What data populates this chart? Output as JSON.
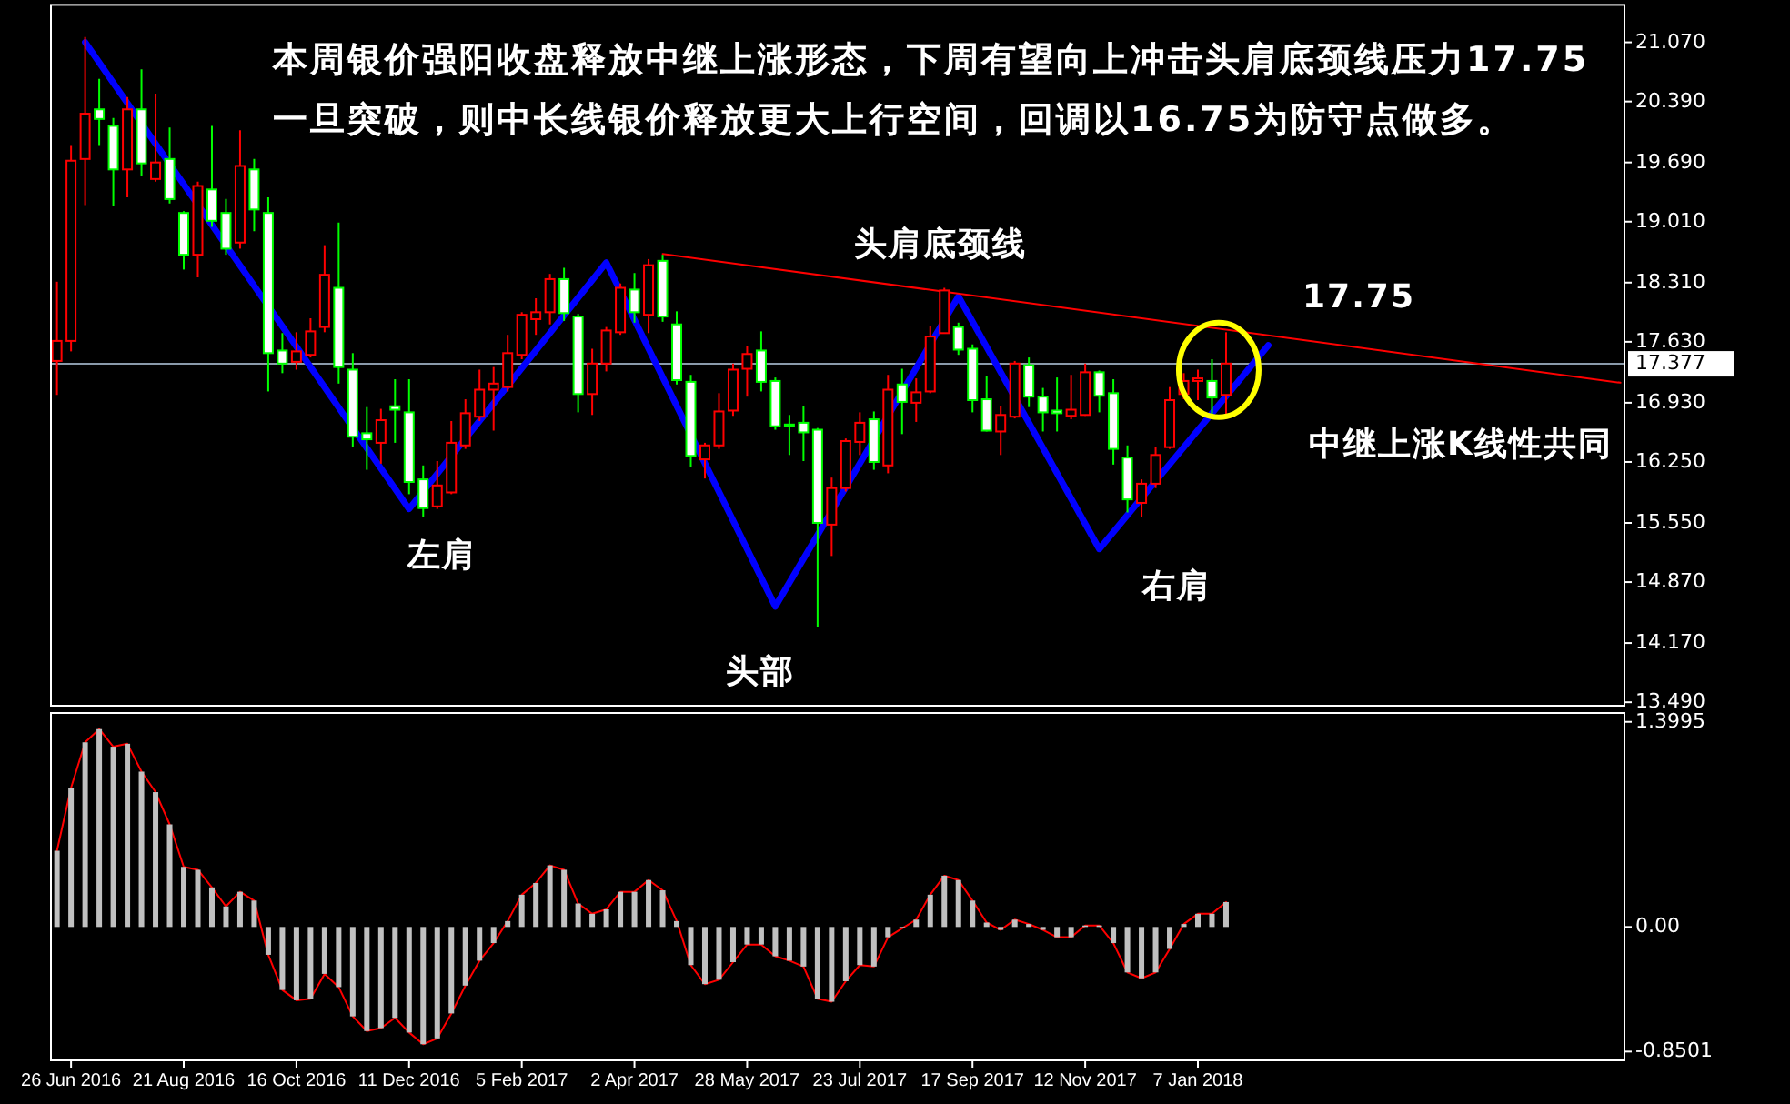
{
  "chart_data": [
    {
      "type": "candlestick",
      "title": "本周银价强阳收盘释放中继上涨形态，下周有望向上冲击头肩底颈线压力17.75",
      "subtitle": "一旦突破，则中长线银价释放更大上行空间，回调以16.75为防守点做多。",
      "x": [
        "2016-06-19",
        "2016-06-26",
        "2016-07-03",
        "2016-07-10",
        "2016-07-17",
        "2016-07-24",
        "2016-07-31",
        "2016-08-07",
        "2016-08-14",
        "2016-08-21",
        "2016-08-28",
        "2016-09-04",
        "2016-09-11",
        "2016-09-18",
        "2016-09-25",
        "2016-10-02",
        "2016-10-09",
        "2016-10-16",
        "2016-10-23",
        "2016-10-30",
        "2016-11-06",
        "2016-11-13",
        "2016-11-20",
        "2016-11-27",
        "2016-12-04",
        "2016-12-11",
        "2016-12-18",
        "2016-12-25",
        "2017-01-01",
        "2017-01-08",
        "2017-01-15",
        "2017-01-22",
        "2017-01-29",
        "2017-02-05",
        "2017-02-12",
        "2017-02-19",
        "2017-02-26",
        "2017-03-05",
        "2017-03-12",
        "2017-03-19",
        "2017-03-26",
        "2017-04-02",
        "2017-04-09",
        "2017-04-16",
        "2017-04-23",
        "2017-04-30",
        "2017-05-07",
        "2017-05-14",
        "2017-05-21",
        "2017-05-28",
        "2017-06-04",
        "2017-06-11",
        "2017-06-18",
        "2017-06-25",
        "2017-07-02",
        "2017-07-09",
        "2017-07-16",
        "2017-07-23",
        "2017-07-30",
        "2017-08-06",
        "2017-08-13",
        "2017-08-20",
        "2017-08-27",
        "2017-09-03",
        "2017-09-10",
        "2017-09-17",
        "2017-09-24",
        "2017-10-01",
        "2017-10-08",
        "2017-10-15",
        "2017-10-22",
        "2017-10-29",
        "2017-11-05",
        "2017-11-12",
        "2017-11-19",
        "2017-11-26",
        "2017-12-03",
        "2017-12-10",
        "2017-12-17",
        "2017-12-24",
        "2017-12-31",
        "2018-01-07",
        "2018-01-14",
        "2018-01-21"
      ],
      "ohlc": [
        [
          17.41,
          18.32,
          17.02,
          17.64
        ],
        [
          17.64,
          19.89,
          17.52,
          19.71
        ],
        [
          19.73,
          21.13,
          19.2,
          20.25
        ],
        [
          20.3,
          20.65,
          19.89,
          20.19
        ],
        [
          20.11,
          20.2,
          19.19,
          19.61
        ],
        [
          19.61,
          20.44,
          19.29,
          20.3
        ],
        [
          20.3,
          20.76,
          19.54,
          19.68
        ],
        [
          19.5,
          20.48,
          19.47,
          19.69
        ],
        [
          19.73,
          20.09,
          19.22,
          19.27
        ],
        [
          19.11,
          19.13,
          18.46,
          18.63
        ],
        [
          18.63,
          19.47,
          18.37,
          19.42
        ],
        [
          19.38,
          20.11,
          18.95,
          19.02
        ],
        [
          19.11,
          19.27,
          18.63,
          18.7
        ],
        [
          18.77,
          20.06,
          18.7,
          19.65
        ],
        [
          19.61,
          19.73,
          18.9,
          19.15
        ],
        [
          19.11,
          19.29,
          17.06,
          17.5
        ],
        [
          17.53,
          17.73,
          17.27,
          17.38
        ],
        [
          17.4,
          17.74,
          17.31,
          17.52
        ],
        [
          17.48,
          17.9,
          17.45,
          17.75
        ],
        [
          17.8,
          18.74,
          17.74,
          18.4
        ],
        [
          18.25,
          19.0,
          17.15,
          17.34
        ],
        [
          17.31,
          17.5,
          16.42,
          16.54
        ],
        [
          16.58,
          16.88,
          16.16,
          16.51
        ],
        [
          16.47,
          16.86,
          16.23,
          16.73
        ],
        [
          16.89,
          17.2,
          16.47,
          16.85
        ],
        [
          16.82,
          17.2,
          15.88,
          16.02
        ],
        [
          16.05,
          16.21,
          15.62,
          15.72
        ],
        [
          15.74,
          16.26,
          15.71,
          15.98
        ],
        [
          15.9,
          16.72,
          15.88,
          16.47
        ],
        [
          16.44,
          16.97,
          16.4,
          16.81
        ],
        [
          16.77,
          17.31,
          16.72,
          17.08
        ],
        [
          17.08,
          17.34,
          16.61,
          17.15
        ],
        [
          17.11,
          17.71,
          17.06,
          17.5
        ],
        [
          17.48,
          17.97,
          17.43,
          17.94
        ],
        [
          17.89,
          18.13,
          17.71,
          17.97
        ],
        [
          17.97,
          18.41,
          17.83,
          18.35
        ],
        [
          18.35,
          18.48,
          17.87,
          17.96
        ],
        [
          17.92,
          17.95,
          16.82,
          17.03
        ],
        [
          17.03,
          17.55,
          16.79,
          17.38
        ],
        [
          17.38,
          17.8,
          17.29,
          17.76
        ],
        [
          17.74,
          18.3,
          17.71,
          18.25
        ],
        [
          18.23,
          18.42,
          17.85,
          17.97
        ],
        [
          17.94,
          18.58,
          17.73,
          18.51
        ],
        [
          18.56,
          18.63,
          17.86,
          17.92
        ],
        [
          17.83,
          17.98,
          17.14,
          17.19
        ],
        [
          17.17,
          17.25,
          16.19,
          16.32
        ],
        [
          16.28,
          16.47,
          16.06,
          16.44
        ],
        [
          16.44,
          17.04,
          16.4,
          16.83
        ],
        [
          16.84,
          17.38,
          16.78,
          17.31
        ],
        [
          17.32,
          17.58,
          17.0,
          17.49
        ],
        [
          17.53,
          17.75,
          17.06,
          17.17
        ],
        [
          17.18,
          17.22,
          16.62,
          16.66
        ],
        [
          16.68,
          16.79,
          16.33,
          16.66
        ],
        [
          16.7,
          16.89,
          16.26,
          16.59
        ],
        [
          16.62,
          16.64,
          14.35,
          15.55
        ],
        [
          15.53,
          16.07,
          15.17,
          15.95
        ],
        [
          15.95,
          16.52,
          15.91,
          16.49
        ],
        [
          16.48,
          16.82,
          16.33,
          16.7
        ],
        [
          16.74,
          16.83,
          16.16,
          16.25
        ],
        [
          16.21,
          17.25,
          16.12,
          17.08
        ],
        [
          17.14,
          17.32,
          16.57,
          16.94
        ],
        [
          16.93,
          17.21,
          16.71,
          17.05
        ],
        [
          17.06,
          17.81,
          17.04,
          17.69
        ],
        [
          17.73,
          18.25,
          17.73,
          18.22
        ],
        [
          17.8,
          17.85,
          17.48,
          17.54
        ],
        [
          17.55,
          17.6,
          16.82,
          16.96
        ],
        [
          16.97,
          17.24,
          16.6,
          16.61
        ],
        [
          16.6,
          16.89,
          16.33,
          16.79
        ],
        [
          16.77,
          17.41,
          16.75,
          17.38
        ],
        [
          17.36,
          17.45,
          16.88,
          17.0
        ],
        [
          17.0,
          17.1,
          16.6,
          16.82
        ],
        [
          16.84,
          17.22,
          16.6,
          16.81
        ],
        [
          16.78,
          17.25,
          16.74,
          16.85
        ],
        [
          16.79,
          17.38,
          16.78,
          17.28
        ],
        [
          17.28,
          17.3,
          16.82,
          17.01
        ],
        [
          17.04,
          17.2,
          16.22,
          16.4
        ],
        [
          16.3,
          16.44,
          15.67,
          15.82
        ],
        [
          15.78,
          16.05,
          15.62,
          16.0
        ],
        [
          16.0,
          16.42,
          15.95,
          16.33
        ],
        [
          16.42,
          17.11,
          16.4,
          16.96
        ],
        [
          17.03,
          17.27,
          16.97,
          17.18
        ],
        [
          17.18,
          17.31,
          16.96,
          17.21
        ],
        [
          17.18,
          17.43,
          16.79,
          16.99
        ],
        [
          17.02,
          17.74,
          16.75,
          17.38
        ]
      ],
      "series": [
        {
          "type": "line",
          "color": "#0000ff",
          "x": [
            "2016-07-03",
            "2016-12-11",
            "2017-03-19",
            "2017-06-11",
            "2017-09-10",
            "2017-11-19",
            "2018-02-11"
          ],
          "values": [
            21.07,
            15.71,
            18.54,
            14.59,
            18.15,
            15.25,
            17.59
          ]
        },
        {
          "type": "line",
          "color": "#ff0000",
          "x": [
            "2017-04-16",
            "2018-08-05"
          ],
          "values": [
            18.64,
            17.16
          ]
        }
      ],
      "ref_lines": [
        {
          "axis": "y",
          "value": 17.377,
          "label": "17.377",
          "color": "#8a9aaa"
        }
      ],
      "annotations": [
        "头肩底颈线",
        "17.75",
        "中继上涨K线性共同",
        "左肩",
        "头部",
        "右肩"
      ],
      "xlim": [
        "2016-06-16",
        "2018-08-07"
      ],
      "ylim": [
        13.45,
        21.5
      ],
      "yticks": [
        {
          "value": 21.07,
          "label": "21.070"
        },
        {
          "value": 20.39,
          "label": "20.390"
        },
        {
          "value": 19.69,
          "label": "19.690"
        },
        {
          "value": 19.01,
          "label": "19.010"
        },
        {
          "value": 18.31,
          "label": "18.310"
        },
        {
          "value": 17.63,
          "label": "17.630"
        },
        {
          "value": 16.93,
          "label": "16.930"
        },
        {
          "value": 16.25,
          "label": "16.250"
        },
        {
          "value": 15.55,
          "label": "15.550"
        },
        {
          "value": 14.87,
          "label": "14.870"
        },
        {
          "value": 14.17,
          "label": "14.170"
        },
        {
          "value": 13.49,
          "label": "13.490"
        }
      ],
      "tick_labels": "y"
    },
    {
      "type": "bar",
      "x": [
        "2016-06-19",
        "2016-06-26",
        "2016-07-03",
        "2016-07-10",
        "2016-07-17",
        "2016-07-24",
        "2016-07-31",
        "2016-08-07",
        "2016-08-14",
        "2016-08-21",
        "2016-08-28",
        "2016-09-04",
        "2016-09-11",
        "2016-09-18",
        "2016-09-25",
        "2016-10-02",
        "2016-10-09",
        "2016-10-16",
        "2016-10-23",
        "2016-10-30",
        "2016-11-06",
        "2016-11-13",
        "2016-11-20",
        "2016-11-27",
        "2016-12-04",
        "2016-12-11",
        "2016-12-18",
        "2016-12-25",
        "2017-01-01",
        "2017-01-08",
        "2017-01-15",
        "2017-01-22",
        "2017-01-29",
        "2017-02-05",
        "2017-02-12",
        "2017-02-19",
        "2017-02-26",
        "2017-03-05",
        "2017-03-12",
        "2017-03-19",
        "2017-03-26",
        "2017-04-02",
        "2017-04-09",
        "2017-04-16",
        "2017-04-23",
        "2017-04-30",
        "2017-05-07",
        "2017-05-14",
        "2017-05-21",
        "2017-05-28",
        "2017-06-04",
        "2017-06-11",
        "2017-06-18",
        "2017-06-25",
        "2017-07-02",
        "2017-07-09",
        "2017-07-16",
        "2017-07-23",
        "2017-07-30",
        "2017-08-06",
        "2017-08-13",
        "2017-08-20",
        "2017-08-27",
        "2017-09-03",
        "2017-09-10",
        "2017-09-17",
        "2017-09-24",
        "2017-10-01",
        "2017-10-08",
        "2017-10-15",
        "2017-10-22",
        "2017-10-29",
        "2017-11-05",
        "2017-11-12",
        "2017-11-19",
        "2017-11-26",
        "2017-12-03",
        "2017-12-10",
        "2017-12-17",
        "2017-12-24",
        "2017-12-31",
        "2018-01-07",
        "2018-01-14",
        "2018-01-21"
      ],
      "series": [
        {
          "color": "#c0c0c0",
          "values": [
            0.52,
            0.95,
            1.26,
            1.35,
            1.23,
            1.25,
            1.06,
            0.92,
            0.7,
            0.41,
            0.39,
            0.27,
            0.14,
            0.24,
            0.18,
            -0.19,
            -0.43,
            -0.5,
            -0.49,
            -0.32,
            -0.41,
            -0.61,
            -0.71,
            -0.69,
            -0.62,
            -0.72,
            -0.8,
            -0.76,
            -0.59,
            -0.4,
            -0.23,
            -0.11,
            0.04,
            0.22,
            0.3,
            0.42,
            0.39,
            0.16,
            0.09,
            0.12,
            0.24,
            0.24,
            0.32,
            0.25,
            0.04,
            -0.26,
            -0.39,
            -0.36,
            -0.24,
            -0.12,
            -0.12,
            -0.2,
            -0.23,
            -0.27,
            -0.49,
            -0.51,
            -0.37,
            -0.26,
            -0.27,
            -0.07,
            -0.01,
            0.05,
            0.22,
            0.35,
            0.32,
            0.18,
            0.03,
            -0.02,
            0.05,
            0.02,
            -0.02,
            -0.07,
            -0.07,
            0.01,
            0.01,
            -0.11,
            -0.31,
            -0.35,
            -0.31,
            -0.15,
            0.02,
            0.09,
            0.09,
            0.17
          ]
        },
        {
          "type": "line",
          "color": "#ff0000",
          "values": [
            0.52,
            0.95,
            1.26,
            1.35,
            1.23,
            1.25,
            1.06,
            0.92,
            0.7,
            0.41,
            0.39,
            0.27,
            0.14,
            0.24,
            0.18,
            -0.19,
            -0.43,
            -0.5,
            -0.49,
            -0.32,
            -0.41,
            -0.61,
            -0.71,
            -0.69,
            -0.62,
            -0.72,
            -0.8,
            -0.76,
            -0.59,
            -0.4,
            -0.23,
            -0.11,
            0.04,
            0.22,
            0.3,
            0.42,
            0.39,
            0.16,
            0.09,
            0.12,
            0.24,
            0.24,
            0.32,
            0.25,
            0.04,
            -0.26,
            -0.39,
            -0.36,
            -0.24,
            -0.12,
            -0.12,
            -0.2,
            -0.23,
            -0.27,
            -0.49,
            -0.51,
            -0.37,
            -0.26,
            -0.27,
            -0.07,
            -0.01,
            0.05,
            0.22,
            0.35,
            0.32,
            0.18,
            0.03,
            -0.02,
            0.05,
            0.02,
            -0.02,
            -0.07,
            -0.07,
            0.01,
            0.01,
            -0.11,
            -0.31,
            -0.35,
            -0.31,
            -0.15,
            0.02,
            0.09,
            0.09,
            0.17
          ]
        }
      ],
      "xlim": [
        "2016-06-16",
        "2018-08-07"
      ],
      "ylim": [
        -0.91,
        1.46
      ],
      "yticks": [
        {
          "value": 1.3995,
          "label": "1.3995"
        },
        {
          "value": 0,
          "label": "0.00"
        },
        {
          "value": -0.8501,
          "label": "-0.8501"
        }
      ],
      "xticks": [
        {
          "value": "2016-06-26",
          "label": "26 Jun 2016"
        },
        {
          "value": "2016-08-21",
          "label": "21 Aug 2016"
        },
        {
          "value": "2016-10-16",
          "label": "16 Oct 2016"
        },
        {
          "value": "2016-12-11",
          "label": "11 Dec 2016"
        },
        {
          "value": "2017-02-05",
          "label": "5 Feb 2017"
        },
        {
          "value": "2017-04-02",
          "label": "2 Apr 2017"
        },
        {
          "value": "2017-05-28",
          "label": "28 May 2017"
        },
        {
          "value": "2017-07-23",
          "label": "23 Jul 2017"
        },
        {
          "value": "2017-09-17",
          "label": "17 Sep 2017"
        },
        {
          "value": "2017-11-12",
          "label": "12 Nov 2017"
        },
        {
          "value": "2018-01-07",
          "label": "7 Jan 2018"
        }
      ]
    }
  ]
}
